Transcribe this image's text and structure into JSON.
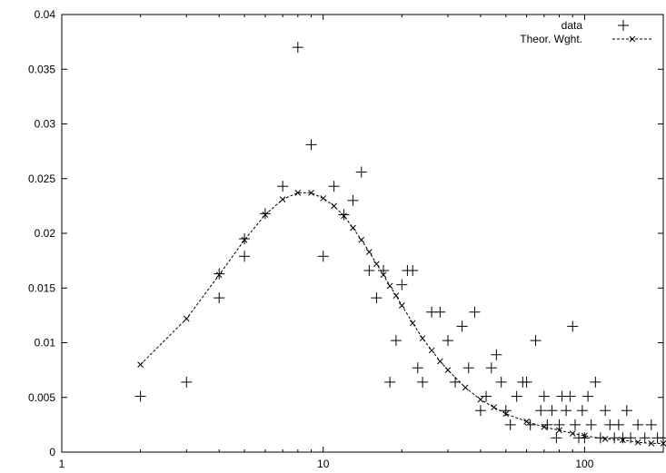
{
  "chart_data": {
    "type": "scatter",
    "title": "",
    "xlabel": "",
    "ylabel": "",
    "x_scale": "log",
    "xlim": [
      1,
      200
    ],
    "ylim": [
      0,
      0.04
    ],
    "x_ticks": [
      1,
      10,
      100
    ],
    "x_tick_labels": [
      "1",
      "10",
      "100"
    ],
    "y_ticks": [
      0,
      0.005,
      0.01,
      0.015,
      0.02,
      0.025,
      0.03,
      0.035,
      0.04
    ],
    "y_tick_labels": [
      "0",
      "0.005",
      "0.01",
      "0.015",
      "0.02",
      "0.025",
      "0.03",
      "0.035",
      "0.04"
    ],
    "grid": false,
    "legend_position": "top-right",
    "series": [
      {
        "name": "data",
        "marker": "plus",
        "style": "points",
        "points": [
          [
            2,
            0.0051
          ],
          [
            3,
            0.0064
          ],
          [
            4,
            0.0141
          ],
          [
            4,
            0.0163
          ],
          [
            5,
            0.0179
          ],
          [
            5,
            0.0195
          ],
          [
            6,
            0.0218
          ],
          [
            7,
            0.0243
          ],
          [
            8,
            0.037
          ],
          [
            9,
            0.0281
          ],
          [
            10,
            0.0179
          ],
          [
            11,
            0.0243
          ],
          [
            12,
            0.0217
          ],
          [
            13,
            0.023
          ],
          [
            14,
            0.0256
          ],
          [
            15,
            0.0166
          ],
          [
            16,
            0.0141
          ],
          [
            17,
            0.0166
          ],
          [
            18,
            0.0064
          ],
          [
            19,
            0.0102
          ],
          [
            20,
            0.0153
          ],
          [
            21,
            0.0166
          ],
          [
            22,
            0.0166
          ],
          [
            23,
            0.0077
          ],
          [
            24,
            0.0064
          ],
          [
            26,
            0.0128
          ],
          [
            28,
            0.0128
          ],
          [
            30,
            0.0102
          ],
          [
            32,
            0.0064
          ],
          [
            34,
            0.0115
          ],
          [
            36,
            0.0077
          ],
          [
            38,
            0.0128
          ],
          [
            40,
            0.0038
          ],
          [
            42,
            0.0051
          ],
          [
            44,
            0.0077
          ],
          [
            46,
            0.0089
          ],
          [
            48,
            0.0064
          ],
          [
            50,
            0.0038
          ],
          [
            52,
            0.0025
          ],
          [
            55,
            0.0051
          ],
          [
            58,
            0.0064
          ],
          [
            60,
            0.0064
          ],
          [
            62,
            0.0025
          ],
          [
            65,
            0.0102
          ],
          [
            68,
            0.0038
          ],
          [
            70,
            0.0051
          ],
          [
            72,
            0.0025
          ],
          [
            75,
            0.0038
          ],
          [
            78,
            0.0013
          ],
          [
            80,
            0.0025
          ],
          [
            82,
            0.0051
          ],
          [
            85,
            0.0038
          ],
          [
            88,
            0.0051
          ],
          [
            90,
            0.0115
          ],
          [
            92,
            0.0025
          ],
          [
            95,
            0.0013
          ],
          [
            98,
            0.0038
          ],
          [
            100,
            0.0013
          ],
          [
            103,
            0.0051
          ],
          [
            106,
            0.0025
          ],
          [
            110,
            0.0064
          ],
          [
            115,
            0.0013
          ],
          [
            120,
            0.0038
          ],
          [
            125,
            0.0025
          ],
          [
            130,
            0.0013
          ],
          [
            135,
            0.0025
          ],
          [
            140,
            0.0013
          ],
          [
            145,
            0.0038
          ],
          [
            150,
            0.0013
          ],
          [
            160,
            0.0025
          ],
          [
            170,
            0.0013
          ],
          [
            180,
            0.0025
          ],
          [
            190,
            0.0013
          ],
          [
            200,
            0.0013
          ]
        ]
      },
      {
        "name": "Theor. Wght.",
        "marker": "x",
        "style": "dashed-line-with-markers",
        "points": [
          [
            2,
            0.008
          ],
          [
            3,
            0.0122
          ],
          [
            4,
            0.0162
          ],
          [
            5,
            0.0194
          ],
          [
            6,
            0.0217
          ],
          [
            7,
            0.0231
          ],
          [
            8,
            0.0237
          ],
          [
            9,
            0.0237
          ],
          [
            10,
            0.0232
          ],
          [
            11,
            0.0225
          ],
          [
            12,
            0.0216
          ],
          [
            13,
            0.0205
          ],
          [
            14,
            0.0194
          ],
          [
            15,
            0.0183
          ],
          [
            16,
            0.0172
          ],
          [
            17,
            0.0162
          ],
          [
            18,
            0.0152
          ],
          [
            19,
            0.0143
          ],
          [
            20,
            0.0134
          ],
          [
            22,
            0.0118
          ],
          [
            24,
            0.0104
          ],
          [
            26,
            0.0093
          ],
          [
            28,
            0.0083
          ],
          [
            30,
            0.0075
          ],
          [
            35,
            0.0059
          ],
          [
            40,
            0.0048
          ],
          [
            45,
            0.0041
          ],
          [
            50,
            0.0035
          ],
          [
            60,
            0.0028
          ],
          [
            70,
            0.0023
          ],
          [
            80,
            0.002
          ],
          [
            90,
            0.0017
          ],
          [
            100,
            0.0015
          ],
          [
            120,
            0.0012
          ],
          [
            140,
            0.0011
          ],
          [
            160,
            0.0009
          ],
          [
            180,
            0.0008
          ],
          [
            200,
            0.0008
          ]
        ]
      }
    ]
  }
}
